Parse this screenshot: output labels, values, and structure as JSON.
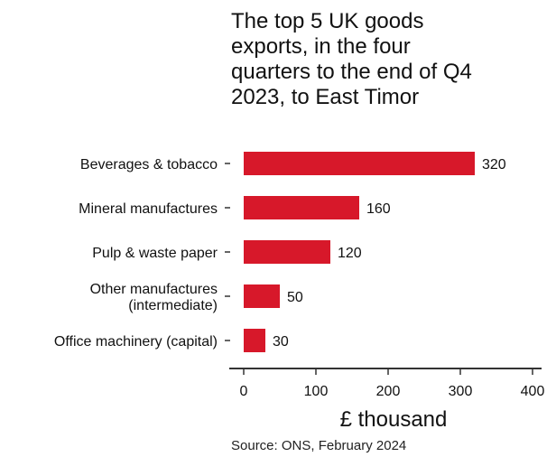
{
  "chart_data": {
    "type": "bar",
    "orientation": "horizontal",
    "title_lines": [
      "The top 5 UK goods",
      "exports, in the four",
      "quarters to the end of Q4",
      "2023, to East Timor"
    ],
    "categories": [
      [
        "Beverages & tobacco"
      ],
      [
        "Mineral manufactures"
      ],
      [
        "Pulp & waste paper"
      ],
      [
        "Other manufactures",
        "(intermediate)"
      ],
      [
        "Office machinery (capital)"
      ]
    ],
    "values": [
      320,
      160,
      120,
      50,
      30
    ],
    "data_labels": [
      "320",
      "160",
      "120",
      "50",
      "30"
    ],
    "xlabel": "£ thousand",
    "xlim": [
      0,
      400
    ],
    "xticks": [
      0,
      100,
      200,
      300,
      400
    ],
    "bar_color": "#d7182a",
    "grid": false,
    "legend": "none"
  },
  "source": "Source: ONS, February 2024"
}
